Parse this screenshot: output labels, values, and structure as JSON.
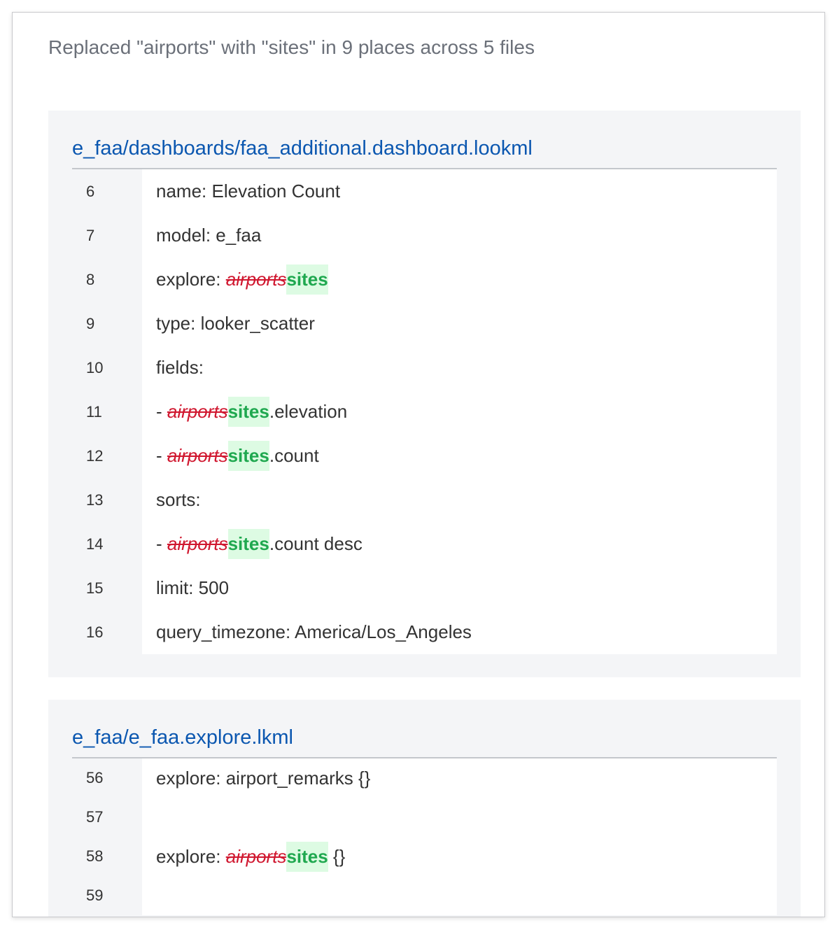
{
  "summary": "Replaced \"airports\" with \"sites\" in 9 places across 5 files",
  "colors": {
    "file_link": "#0b57b0",
    "deleted": "#d0172f",
    "inserted": "#1fa84f",
    "inserted_bg": "#ddfbe3"
  },
  "files": [
    {
      "name": "e_faa/dashboards/faa_additional.dashboard.lookml",
      "lines": [
        {
          "num": "6",
          "parts": [
            {
              "t": "name: Elevation Count",
              "k": "plain"
            }
          ]
        },
        {
          "num": "7",
          "parts": [
            {
              "t": "model: e_faa",
              "k": "plain"
            }
          ]
        },
        {
          "num": "8",
          "parts": [
            {
              "t": "explore: ",
              "k": "plain"
            },
            {
              "t": "airports",
              "k": "del"
            },
            {
              "t": "sites",
              "k": "ins"
            }
          ]
        },
        {
          "num": "9",
          "parts": [
            {
              "t": "type: looker_scatter",
              "k": "plain"
            }
          ]
        },
        {
          "num": "10",
          "parts": [
            {
              "t": "fields:",
              "k": "plain"
            }
          ]
        },
        {
          "num": "11",
          "parts": [
            {
              "t": "- ",
              "k": "plain"
            },
            {
              "t": "airports",
              "k": "del"
            },
            {
              "t": "sites",
              "k": "ins"
            },
            {
              "t": ".elevation",
              "k": "plain"
            }
          ]
        },
        {
          "num": "12",
          "parts": [
            {
              "t": "- ",
              "k": "plain"
            },
            {
              "t": "airports",
              "k": "del"
            },
            {
              "t": "sites",
              "k": "ins"
            },
            {
              "t": ".count",
              "k": "plain"
            }
          ]
        },
        {
          "num": "13",
          "parts": [
            {
              "t": "sorts:",
              "k": "plain"
            }
          ]
        },
        {
          "num": "14",
          "parts": [
            {
              "t": "- ",
              "k": "plain"
            },
            {
              "t": "airports",
              "k": "del"
            },
            {
              "t": "sites",
              "k": "ins"
            },
            {
              "t": ".count desc",
              "k": "plain"
            }
          ]
        },
        {
          "num": "15",
          "parts": [
            {
              "t": "limit: 500",
              "k": "plain"
            }
          ]
        },
        {
          "num": "16",
          "parts": [
            {
              "t": "query_timezone: America/Los_Angeles",
              "k": "plain"
            }
          ]
        }
      ]
    },
    {
      "name": "e_faa/e_faa.explore.lkml",
      "lines": [
        {
          "num": "56",
          "parts": [
            {
              "t": "explore: airport_remarks {}",
              "k": "plain"
            }
          ]
        },
        {
          "num": "57",
          "parts": []
        },
        {
          "num": "58",
          "parts": [
            {
              "t": "explore: ",
              "k": "plain"
            },
            {
              "t": "airports",
              "k": "del"
            },
            {
              "t": "sites",
              "k": "ins"
            },
            {
              "t": " {}",
              "k": "plain"
            }
          ]
        },
        {
          "num": "59",
          "parts": []
        }
      ]
    }
  ]
}
